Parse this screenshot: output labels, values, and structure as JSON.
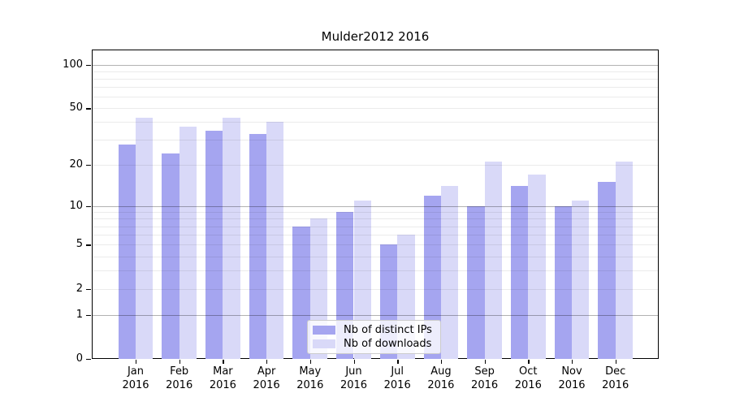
{
  "chart_data": {
    "type": "bar",
    "title": "Mulder2012 2016",
    "categories": [
      "Jan",
      "Feb",
      "Mar",
      "Apr",
      "May",
      "Jun",
      "Jul",
      "Aug",
      "Sep",
      "Oct",
      "Nov",
      "Dec"
    ],
    "year_label": "2016",
    "series": [
      {
        "name": "Nb of distinct IPs",
        "color": "#a5a5f0",
        "values": [
          28,
          24,
          35,
          33,
          7,
          9,
          5,
          12,
          10,
          14,
          10,
          15
        ]
      },
      {
        "name": "Nb of downloads",
        "color": "#d9d9f8",
        "values": [
          43,
          37,
          43,
          40,
          8,
          11,
          6,
          14,
          21,
          17,
          11,
          21
        ]
      }
    ],
    "yscale": "log1p",
    "yticks": [
      0,
      1,
      2,
      5,
      10,
      20,
      50,
      100
    ],
    "minor_gridlines": [
      2,
      3,
      4,
      5,
      6,
      7,
      8,
      9,
      20,
      30,
      40,
      50,
      60,
      70,
      80,
      90
    ],
    "major_gridlines": [
      1,
      10,
      100
    ],
    "ylim": [
      0,
      127
    ],
    "xlabel": "",
    "ylabel": "",
    "grid": true,
    "legend": {
      "position": "lower center"
    },
    "colors": {
      "bar_dark": "#a5a5f0",
      "bar_light": "#d9d9f8",
      "grid_major": "rgba(0,0,0,0.30)",
      "grid_minor": "rgba(0,0,0,0.08)",
      "spine": "#000000",
      "legend_border": "#cccccc"
    }
  }
}
